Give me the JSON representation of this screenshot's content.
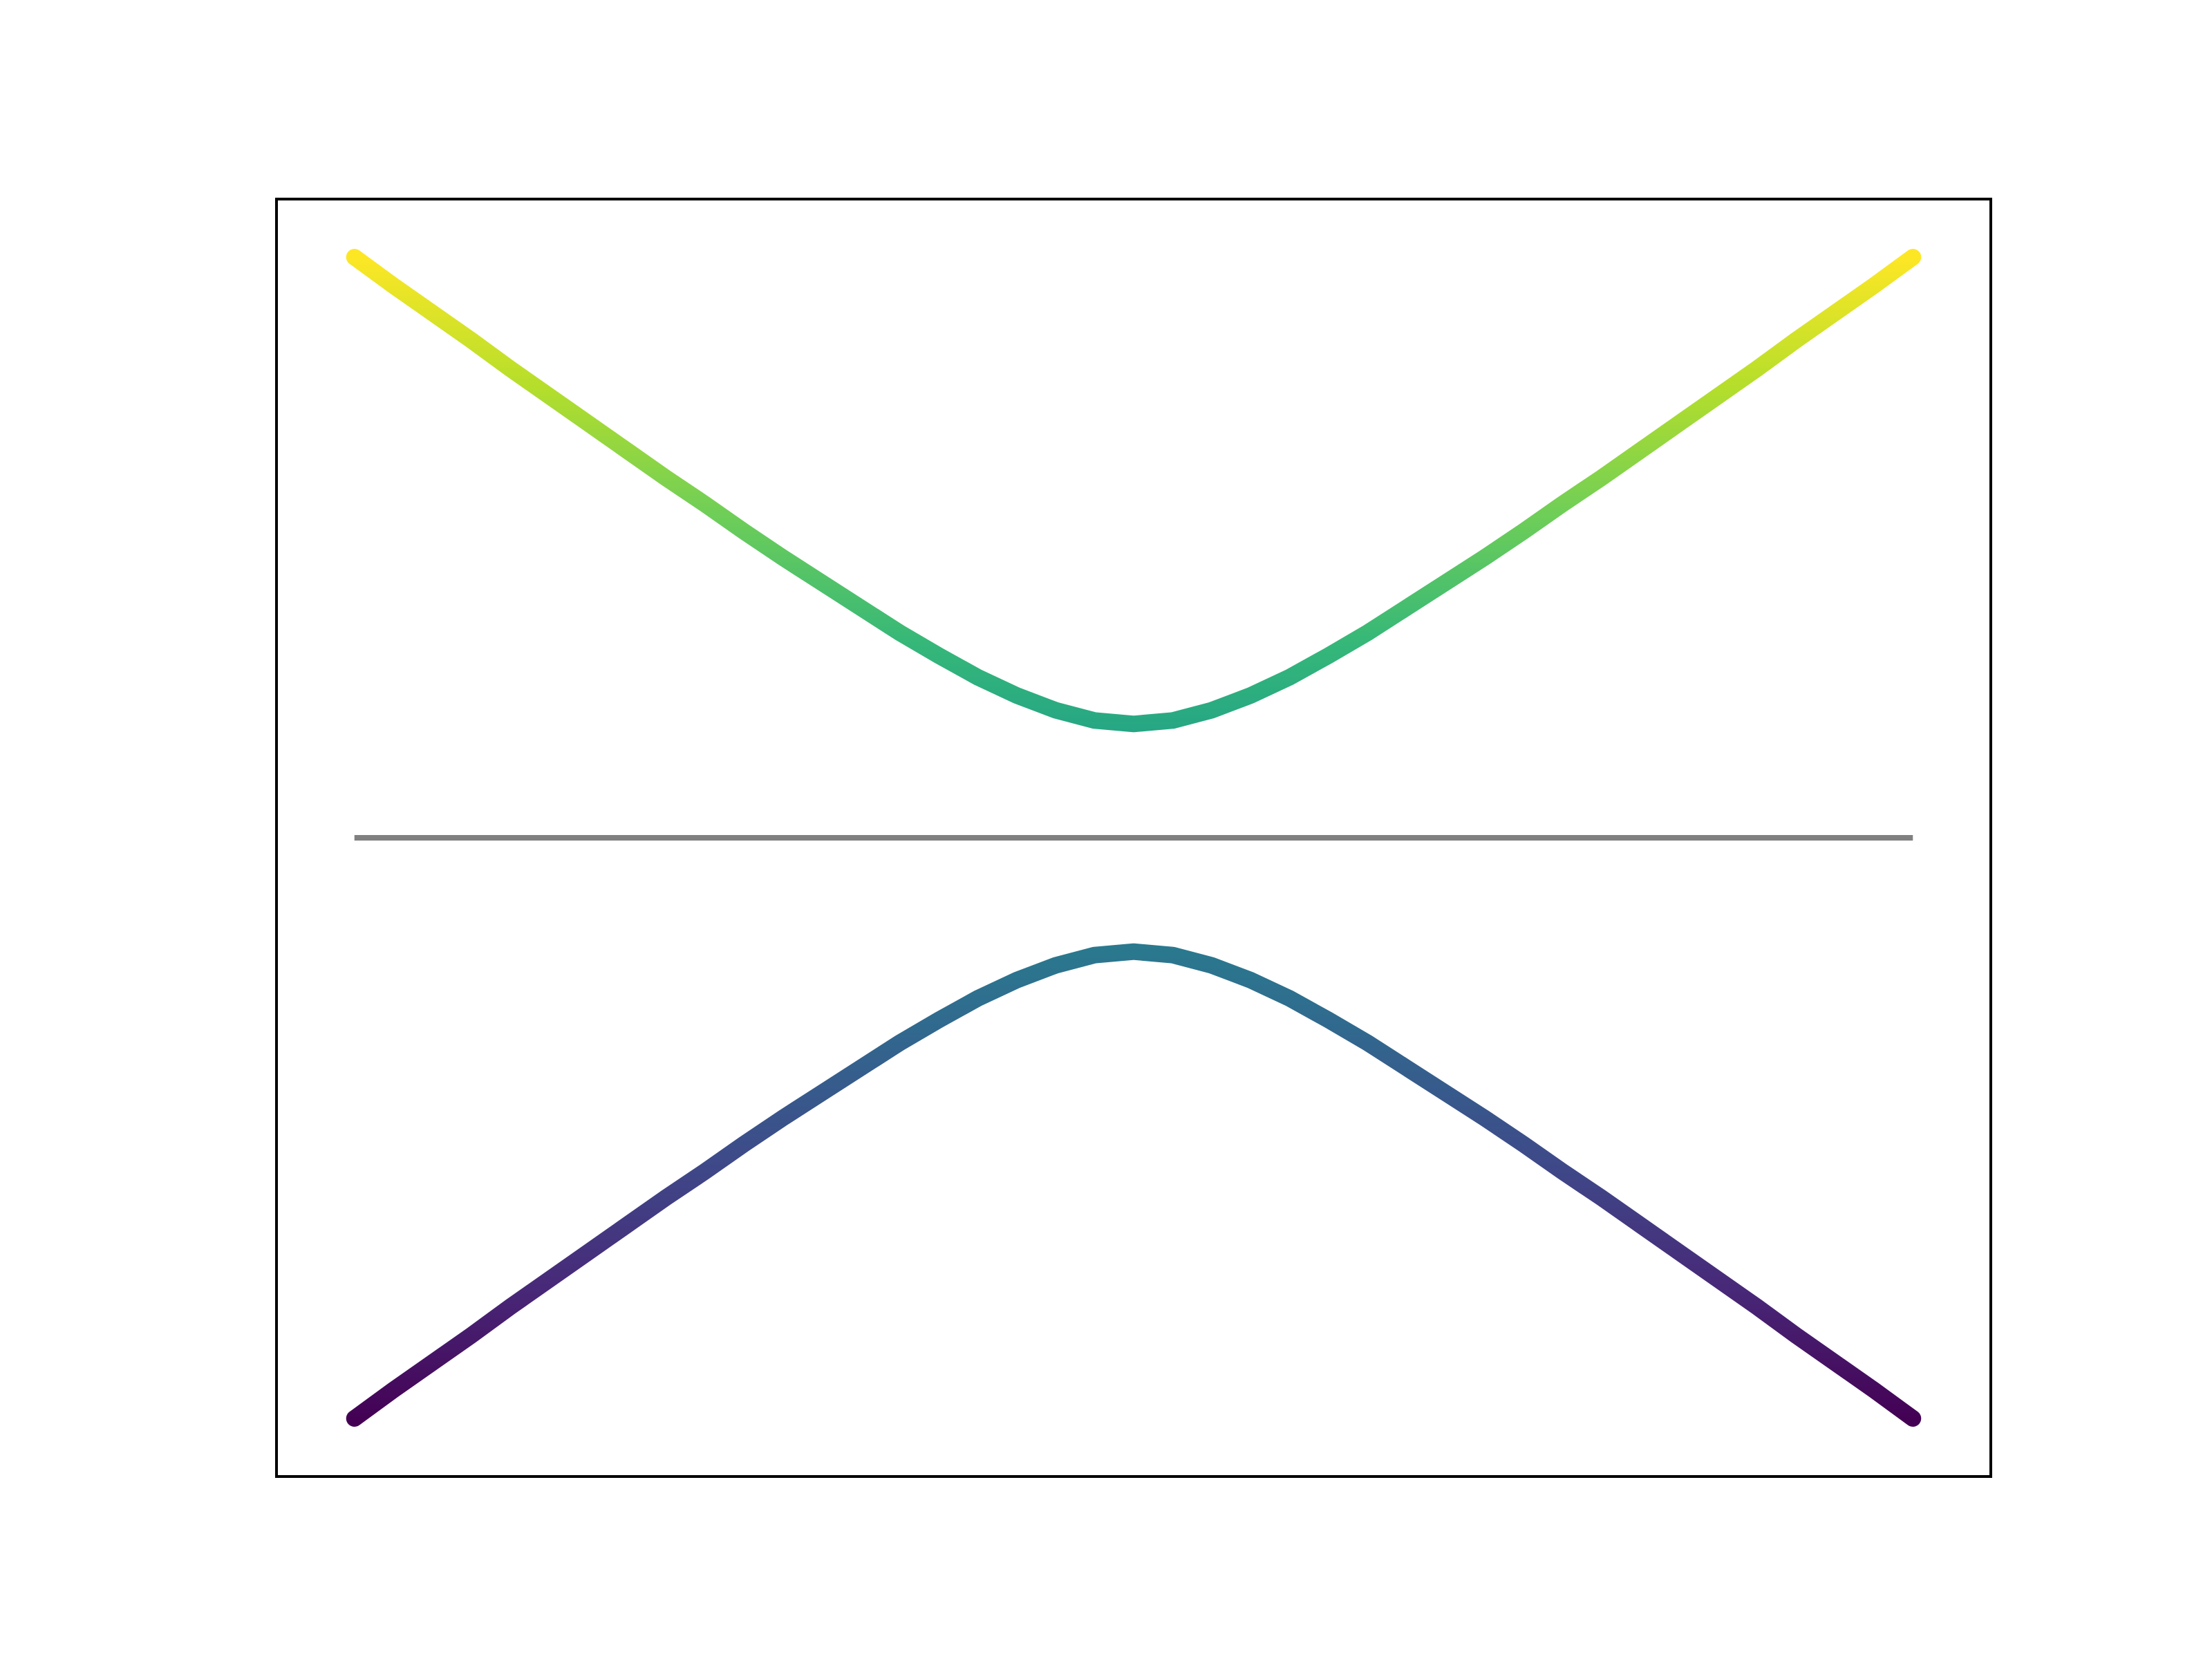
{
  "chart_data": {
    "type": "line",
    "x": [
      -5,
      -4.75,
      -4.5,
      -4.25,
      -4,
      -3.75,
      -3.5,
      -3.25,
      -3,
      -2.75,
      -2.5,
      -2.25,
      -2,
      -1.75,
      -1.5,
      -1.25,
      -1,
      -0.75,
      -0.5,
      -0.25,
      0,
      0.25,
      0.5,
      0.75,
      1,
      1.25,
      1.5,
      1.75,
      2,
      2.25,
      2.5,
      2.75,
      3,
      3.25,
      3.5,
      3.75,
      4,
      4.25,
      4.5,
      4.75,
      5
    ],
    "series": [
      {
        "values": [
          5.1,
          4.85,
          4.61,
          4.37,
          4.12,
          3.88,
          3.64,
          3.4,
          3.16,
          2.93,
          2.69,
          2.46,
          2.24,
          2.02,
          1.8,
          1.6,
          1.41,
          1.25,
          1.12,
          1.03,
          1,
          1.03,
          1.12,
          1.25,
          1.41,
          1.6,
          1.8,
          2.02,
          2.24,
          2.46,
          2.69,
          2.93,
          3.16,
          3.4,
          3.64,
          3.88,
          4.12,
          4.37,
          4.61,
          4.85,
          5.1
        ]
      },
      {
        "values": [
          -5.1,
          -4.85,
          -4.61,
          -4.37,
          -4.12,
          -3.88,
          -3.64,
          -3.4,
          -3.16,
          -2.93,
          -2.69,
          -2.46,
          -2.24,
          -2.02,
          -1.8,
          -1.6,
          -1.41,
          -1.25,
          -1.12,
          -1.03,
          -1,
          -1.03,
          -1.12,
          -1.25,
          -1.41,
          -1.6,
          -1.8,
          -2.02,
          -2.24,
          -2.46,
          -2.69,
          -2.93,
          -3.16,
          -3.4,
          -3.64,
          -3.88,
          -4.12,
          -4.37,
          -4.61,
          -4.85,
          -5.1
        ]
      }
    ],
    "colormap": [
      "#440154",
      "#482878",
      "#3e4a89",
      "#31688e",
      "#26828e",
      "#1f9e89",
      "#35b779",
      "#6ece58",
      "#b5de2b",
      "#fde725"
    ],
    "hline": {
      "y": 0,
      "color": "#808080"
    },
    "xlim": [
      -5.5,
      5.5
    ],
    "ylim": [
      -5.61,
      5.61
    ]
  }
}
